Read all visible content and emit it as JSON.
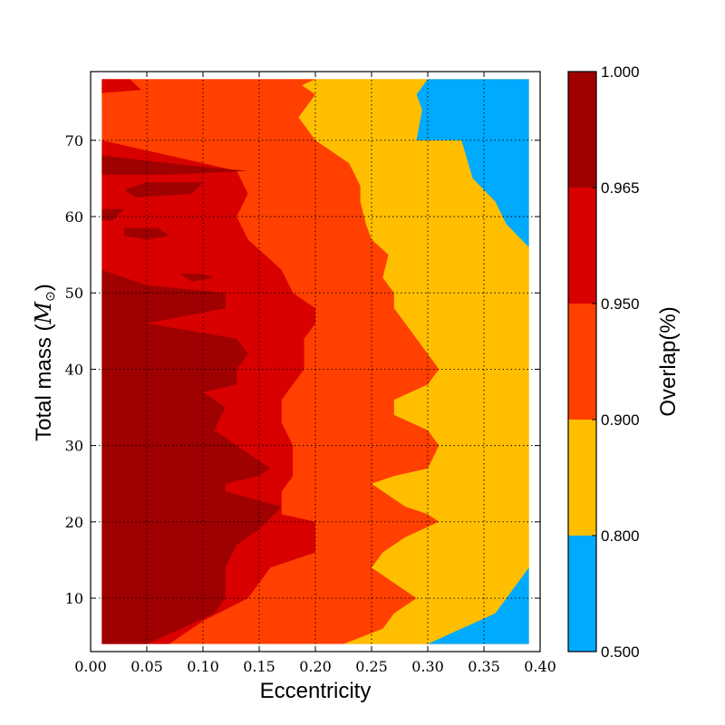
{
  "chart_data": {
    "type": "heatmap",
    "subtype": "filled-contour",
    "xlabel": "Eccentricity",
    "ylabel_text": "Total mass (",
    "ylabel_symbol": "M",
    "ylabel_sub": "⊙",
    "ylabel_close": ")",
    "xlim": [
      0.0,
      0.4
    ],
    "ylim": [
      3,
      79
    ],
    "grid": true,
    "grid_style": "dotted",
    "x_ticks": [
      "0.00",
      "0.05",
      "0.10",
      "0.15",
      "0.20",
      "0.25",
      "0.30",
      "0.35",
      "0.40"
    ],
    "x_tick_values": [
      0.0,
      0.05,
      0.1,
      0.15,
      0.2,
      0.25,
      0.3,
      0.35,
      0.4
    ],
    "y_ticks": [
      "10",
      "20",
      "30",
      "40",
      "50",
      "60",
      "70"
    ],
    "y_tick_values": [
      10,
      20,
      30,
      40,
      50,
      60,
      70
    ],
    "data_extent": {
      "x": [
        0.01,
        0.39
      ],
      "y": [
        4,
        78
      ]
    },
    "colorbar": {
      "label": "Overlap(%)",
      "ticks": [
        "0.500",
        "0.800",
        "0.900",
        "0.950",
        "0.965",
        "1.000"
      ],
      "tick_values": [
        0.5,
        0.8,
        0.9,
        0.95,
        0.965,
        1.0
      ],
      "levels": [
        {
          "range": [
            0.5,
            0.8
          ],
          "color": "#00aaff"
        },
        {
          "range": [
            0.8,
            0.9
          ],
          "color": "#ffbf00"
        },
        {
          "range": [
            0.9,
            0.95
          ],
          "color": "#ff4000"
        },
        {
          "range": [
            0.95,
            0.965
          ],
          "color": "#d90000"
        },
        {
          "range": [
            0.965,
            1.0
          ],
          "color": "#9f0000"
        }
      ]
    },
    "regions": [
      {
        "level": "0.800-0.900",
        "color": "#ffbf00",
        "boundary_left_of_region": [
          [
            0.225,
            4
          ],
          [
            0.26,
            6
          ],
          [
            0.27,
            8
          ],
          [
            0.29,
            10
          ],
          [
            0.27,
            12
          ],
          [
            0.25,
            14
          ],
          [
            0.26,
            16
          ],
          [
            0.28,
            18
          ],
          [
            0.31,
            20
          ],
          [
            0.3,
            21
          ],
          [
            0.28,
            22
          ],
          [
            0.27,
            23
          ],
          [
            0.25,
            25
          ],
          [
            0.27,
            26
          ],
          [
            0.3,
            27
          ],
          [
            0.31,
            30
          ],
          [
            0.3,
            32
          ],
          [
            0.27,
            34
          ],
          [
            0.27,
            36
          ],
          [
            0.3,
            38
          ],
          [
            0.31,
            40
          ],
          [
            0.3,
            42
          ],
          [
            0.29,
            44
          ],
          [
            0.28,
            46
          ],
          [
            0.27,
            48
          ],
          [
            0.27,
            50
          ],
          [
            0.26,
            52
          ],
          [
            0.265,
            55
          ],
          [
            0.25,
            57
          ],
          [
            0.245,
            59
          ],
          [
            0.24,
            62
          ],
          [
            0.24,
            64
          ],
          [
            0.23,
            67
          ],
          [
            0.2,
            70
          ],
          [
            0.185,
            73
          ],
          [
            0.2,
            76
          ],
          [
            0.18,
            78
          ]
        ]
      },
      {
        "level": "0.500-0.800",
        "color": "#00aaff",
        "boundary_left_of_region": [
          [
            0.39,
            4
          ],
          [
            0.3,
            4
          ],
          [
            0.33,
            6
          ],
          [
            0.36,
            8
          ],
          [
            0.39,
            14
          ],
          [
            0.39,
            56
          ],
          [
            0.37,
            59
          ],
          [
            0.36,
            62
          ],
          [
            0.34,
            65
          ],
          [
            0.33,
            70
          ],
          [
            0.29,
            70
          ],
          [
            0.295,
            74
          ],
          [
            0.29,
            76
          ],
          [
            0.3,
            78
          ],
          [
            0.39,
            78
          ]
        ]
      },
      {
        "level": "0.950-0.965",
        "color": "#d90000",
        "boundary_left_of_region": [
          [
            0.07,
            4
          ],
          [
            0.1,
            7
          ],
          [
            0.14,
            10
          ],
          [
            0.15,
            12
          ],
          [
            0.16,
            14
          ],
          [
            0.2,
            16
          ],
          [
            0.2,
            20
          ],
          [
            0.17,
            21
          ],
          [
            0.17,
            24
          ],
          [
            0.18,
            26
          ],
          [
            0.18,
            30
          ],
          [
            0.17,
            33
          ],
          [
            0.17,
            36
          ],
          [
            0.19,
            40
          ],
          [
            0.19,
            44
          ],
          [
            0.2,
            46
          ],
          [
            0.2,
            48
          ],
          [
            0.18,
            50
          ],
          [
            0.17,
            53
          ],
          [
            0.14,
            57
          ],
          [
            0.13,
            60
          ],
          [
            0.14,
            63
          ],
          [
            0.13,
            66
          ],
          [
            0.07,
            68
          ],
          [
            0.01,
            70
          ]
        ]
      },
      {
        "level": "0.965-1.000",
        "color": "#9f0000",
        "boundary_left_of_region": [
          [
            0.05,
            4
          ],
          [
            0.08,
            6
          ],
          [
            0.11,
            8
          ],
          [
            0.12,
            10
          ],
          [
            0.12,
            14
          ],
          [
            0.13,
            17
          ],
          [
            0.15,
            19
          ],
          [
            0.17,
            22
          ],
          [
            0.12,
            24
          ],
          [
            0.12,
            25
          ],
          [
            0.15,
            26
          ],
          [
            0.16,
            27
          ],
          [
            0.13,
            30
          ],
          [
            0.11,
            32
          ],
          [
            0.12,
            35
          ],
          [
            0.1,
            37
          ],
          [
            0.13,
            38
          ],
          [
            0.13,
            40
          ],
          [
            0.14,
            42
          ],
          [
            0.13,
            44
          ],
          [
            0.05,
            46
          ],
          [
            0.12,
            48
          ],
          [
            0.12,
            50
          ],
          [
            0.05,
            51
          ],
          [
            0.01,
            53
          ]
        ]
      }
    ]
  }
}
